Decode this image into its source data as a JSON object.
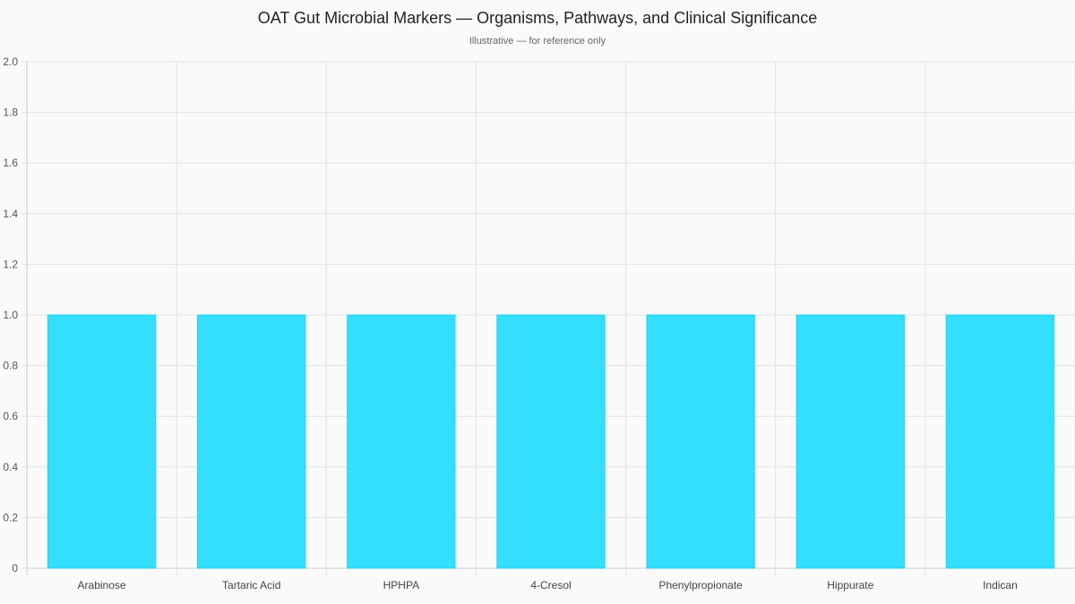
{
  "chart_data": {
    "type": "bar",
    "title": "OAT Gut Microbial Markers — Organisms, Pathways, and Clinical Significance",
    "subtitle": "Illustrative — for reference only",
    "categories": [
      "Arabinose",
      "Tartaric Acid",
      "HPHPA",
      "4-Cresol",
      "Phenylpropionate",
      "Hippurate",
      "Indican"
    ],
    "values": [
      1,
      1,
      1,
      1,
      1,
      1,
      1
    ],
    "xlabel": "",
    "ylabel": "",
    "ylim": [
      0,
      2.0
    ],
    "yticks": [
      "0",
      "0.2",
      "0.4",
      "0.6",
      "0.8",
      "1.0",
      "1.2",
      "1.4",
      "1.6",
      "1.8",
      "2.0"
    ],
    "grid": true,
    "legend": "none",
    "colors": {
      "bar_fill": "#33dffc",
      "bar_border": "#22d3ee",
      "grid": "#e2e2e2",
      "axis": "#cccccc"
    }
  }
}
